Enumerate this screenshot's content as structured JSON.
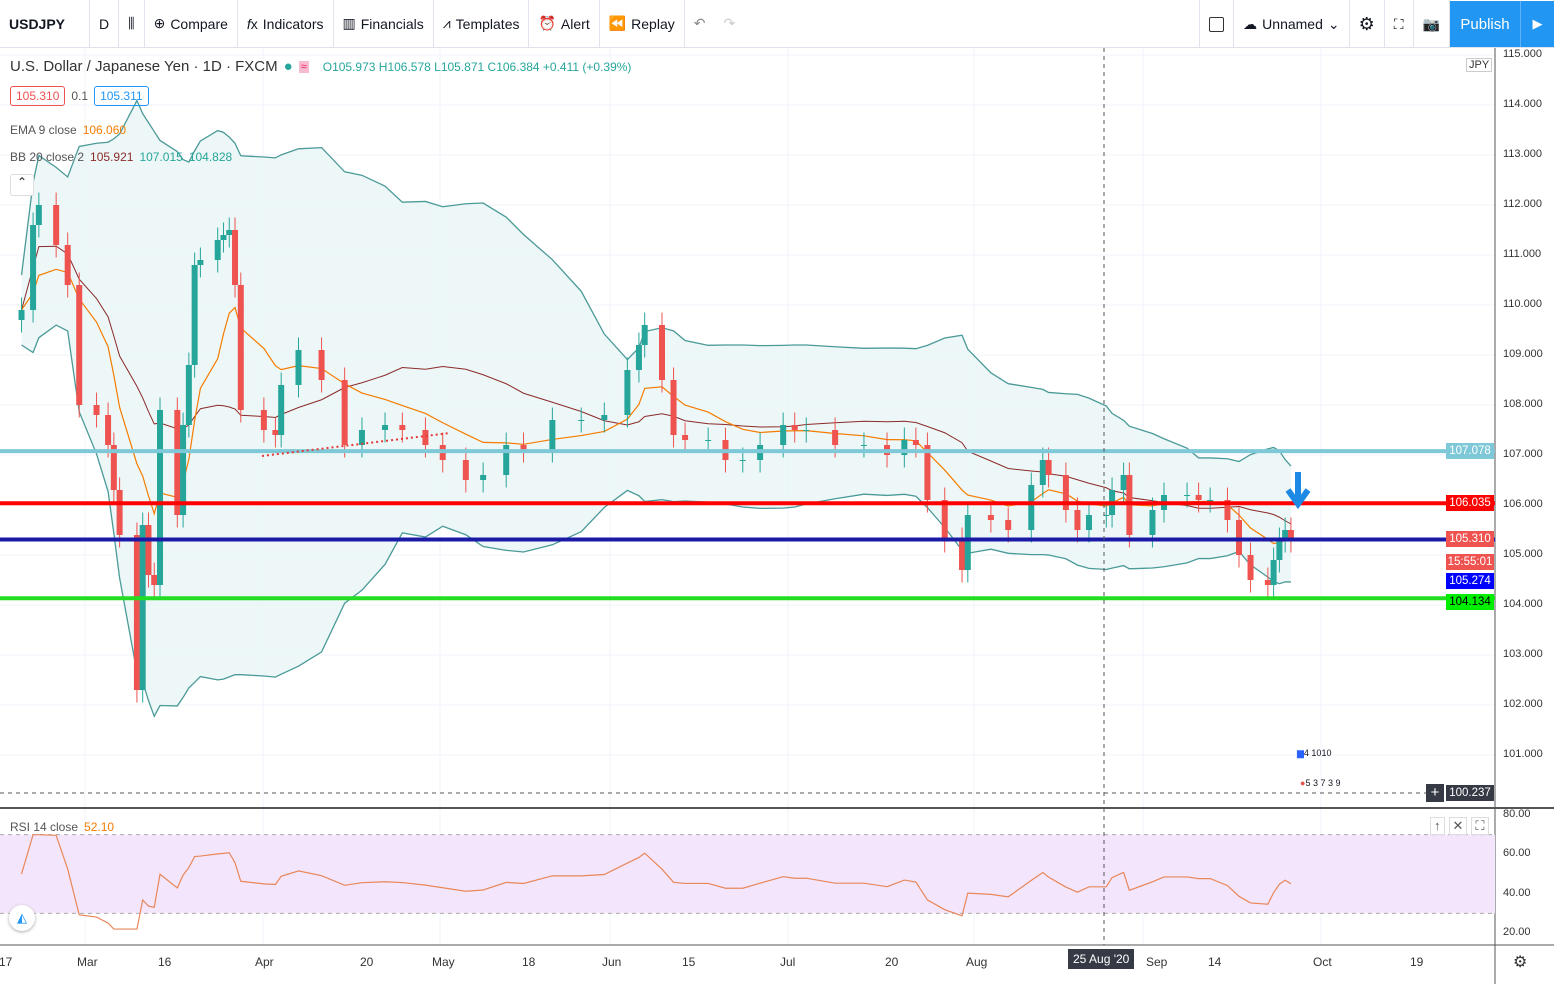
{
  "toolbar": {
    "symbol": "USDJPY",
    "interval": "D",
    "compare": "Compare",
    "indicators": "Indicators",
    "financials": "Financials",
    "templates": "Templates",
    "alert": "Alert",
    "replay": "Replay",
    "layout_name": "Unnamed",
    "publish": "Publish"
  },
  "legend": {
    "title": "U.S. Dollar / Japanese Yen · 1D · FXCM",
    "ohlc": "O105.973 H106.578 L105.871 C106.384 +0.411 (+0.39%)",
    "bid": "105.310",
    "spread": "0.1",
    "ask": "105.311",
    "ema_label": "EMA 9 close",
    "ema_value": "106.060",
    "bb_label": "BB 20 close 2",
    "bb_mid": "105.921",
    "bb_upper": "107.015",
    "bb_lower": "104.828",
    "rsi_label": "RSI 14 close",
    "rsi_value": "52.10"
  },
  "axis": {
    "currency": "JPY",
    "price_ticks": [
      "115.000",
      "114.000",
      "113.000",
      "112.000",
      "111.000",
      "110.000",
      "109.000",
      "108.000",
      "107.000",
      "106.000",
      "105.000",
      "104.000",
      "103.000",
      "102.000",
      "101.000"
    ],
    "rsi_ticks": [
      "80.00",
      "60.00",
      "40.00",
      "20.00"
    ],
    "time_ticks": [
      "17",
      "Mar",
      "16",
      "Apr",
      "20",
      "May",
      "18",
      "Jun",
      "15",
      "Jul",
      "20",
      "Aug",
      "17",
      "Sep",
      "14",
      "Oct",
      "19"
    ],
    "crosshair_date": "25 Aug '20",
    "crosshair_price": "100.237"
  },
  "price_tags": [
    {
      "value": "107.078",
      "color": "#7ec8d8"
    },
    {
      "value": "106.035",
      "color": "#ff0000"
    },
    {
      "value": "105.310",
      "color": "#ef5350"
    },
    {
      "value": "15:55:01",
      "color": "#ef5350"
    },
    {
      "value": "105.274",
      "color": "#0000ff"
    },
    {
      "value": "104.134",
      "color": "#00ee00"
    }
  ],
  "events": {
    "top": "4 1010",
    "bottom": "5 3 7 3 9"
  },
  "chart_data": {
    "type": "candlestick",
    "symbol": "USDJPY",
    "ylim": [
      100,
      115
    ],
    "hlines": [
      {
        "price": 107.078,
        "color": "#7ec8d8"
      },
      {
        "price": 106.035,
        "color": "#ff0000"
      },
      {
        "price": 105.31,
        "color": "#1a1aa6"
      },
      {
        "price": 104.134,
        "color": "#22dd22"
      }
    ],
    "closes": [
      [
        "02-18",
        109.9
      ],
      [
        "02-20",
        111.6
      ],
      [
        "02-21",
        112.0
      ],
      [
        "02-24",
        111.2
      ],
      [
        "02-26",
        110.4
      ],
      [
        "02-28",
        108.0
      ],
      [
        "03-02",
        107.8
      ],
      [
        "03-04",
        107.2
      ],
      [
        "03-05",
        106.3
      ],
      [
        "03-06",
        105.4
      ],
      [
        "03-09",
        102.3
      ],
      [
        "03-10",
        105.6
      ],
      [
        "03-11",
        104.6
      ],
      [
        "03-12",
        104.4
      ],
      [
        "03-13",
        107.9
      ],
      [
        "03-16",
        105.8
      ],
      [
        "03-17",
        107.6
      ],
      [
        "03-18",
        108.8
      ],
      [
        "03-19",
        110.8
      ],
      [
        "03-20",
        110.9
      ],
      [
        "03-23",
        111.3
      ],
      [
        "03-24",
        111.4
      ],
      [
        "03-25",
        111.5
      ],
      [
        "03-26",
        110.4
      ],
      [
        "03-27",
        107.9
      ],
      [
        "03-31",
        107.5
      ],
      [
        "04-02",
        107.4
      ],
      [
        "04-03",
        108.4
      ],
      [
        "04-06",
        109.1
      ],
      [
        "04-10",
        108.5
      ],
      [
        "04-14",
        107.2
      ],
      [
        "04-17",
        107.5
      ],
      [
        "04-21",
        107.6
      ],
      [
        "04-24",
        107.5
      ],
      [
        "04-28",
        107.2
      ],
      [
        "05-01",
        106.9
      ],
      [
        "05-05",
        106.5
      ],
      [
        "05-08",
        106.6
      ],
      [
        "05-12",
        107.2
      ],
      [
        "05-15",
        107.1
      ],
      [
        "05-20",
        107.7
      ],
      [
        "05-25",
        107.7
      ],
      [
        "05-29",
        107.8
      ],
      [
        "06-02",
        108.7
      ],
      [
        "06-04",
        109.2
      ],
      [
        "06-05",
        109.6
      ],
      [
        "06-08",
        108.5
      ],
      [
        "06-10",
        107.4
      ],
      [
        "06-12",
        107.3
      ],
      [
        "06-16",
        107.3
      ],
      [
        "06-19",
        106.9
      ],
      [
        "06-22",
        106.9
      ],
      [
        "06-25",
        107.2
      ],
      [
        "06-29",
        107.6
      ],
      [
        "07-01",
        107.5
      ],
      [
        "07-03",
        107.5
      ],
      [
        "07-08",
        107.2
      ],
      [
        "07-13",
        107.2
      ],
      [
        "07-17",
        107.0
      ],
      [
        "07-20",
        107.3
      ],
      [
        "07-22",
        107.2
      ],
      [
        "07-24",
        106.1
      ],
      [
        "07-27",
        105.3
      ],
      [
        "07-30",
        104.7
      ],
      [
        "07-31",
        105.8
      ],
      [
        "08-04",
        105.7
      ],
      [
        "08-07",
        105.5
      ],
      [
        "08-11",
        106.4
      ],
      [
        "08-13",
        106.9
      ],
      [
        "08-14",
        106.6
      ],
      [
        "08-17",
        105.9
      ],
      [
        "08-19",
        105.5
      ],
      [
        "08-21",
        105.8
      ],
      [
        "08-24",
        105.8
      ],
      [
        "08-25",
        106.3
      ],
      [
        "08-27",
        106.6
      ],
      [
        "08-28",
        105.4
      ],
      [
        "09-01",
        105.9
      ],
      [
        "09-03",
        106.2
      ],
      [
        "09-07",
        106.2
      ],
      [
        "09-09",
        106.1
      ],
      [
        "09-11",
        106.1
      ],
      [
        "09-14",
        105.7
      ],
      [
        "09-16",
        105.0
      ],
      [
        "09-18",
        104.5
      ],
      [
        "09-21",
        104.4
      ],
      [
        "09-22",
        104.9
      ],
      [
        "09-23",
        105.3
      ],
      [
        "09-24",
        105.5
      ],
      [
        "09-25",
        105.3
      ]
    ]
  }
}
